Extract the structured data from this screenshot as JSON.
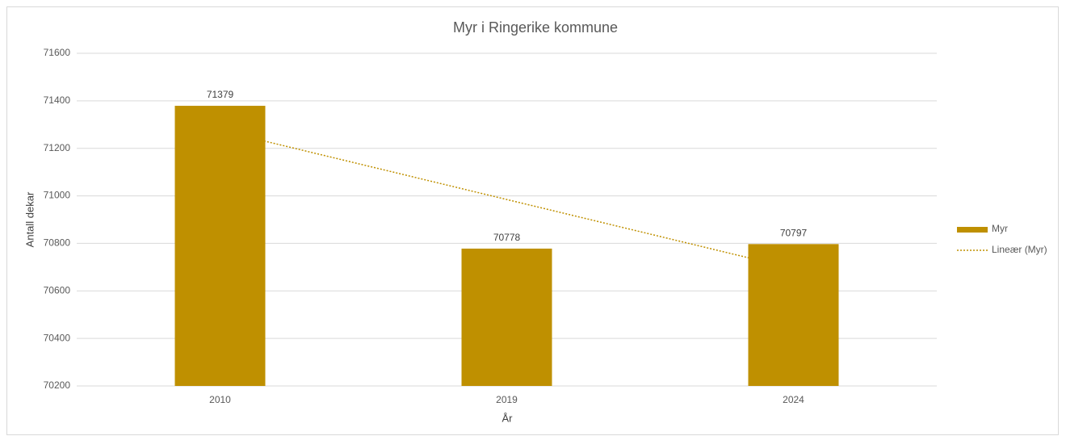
{
  "chart_data": {
    "type": "bar",
    "title": "Myr i Ringerike kommune",
    "xlabel": "År",
    "ylabel": "Antall dekar",
    "categories": [
      "2010",
      "2019",
      "2024"
    ],
    "series": [
      {
        "name": "Myr",
        "color": "#bf9000",
        "values": [
          71379,
          70778,
          70797
        ]
      }
    ],
    "trendline": {
      "name": "Lineær (Myr)",
      "type": "linear",
      "color": "#bf9000"
    },
    "ylim": [
      70200,
      71600
    ],
    "yticks": [
      70200,
      70400,
      70600,
      70800,
      71000,
      71200,
      71400,
      71600
    ],
    "grid": true,
    "legend": "right"
  }
}
